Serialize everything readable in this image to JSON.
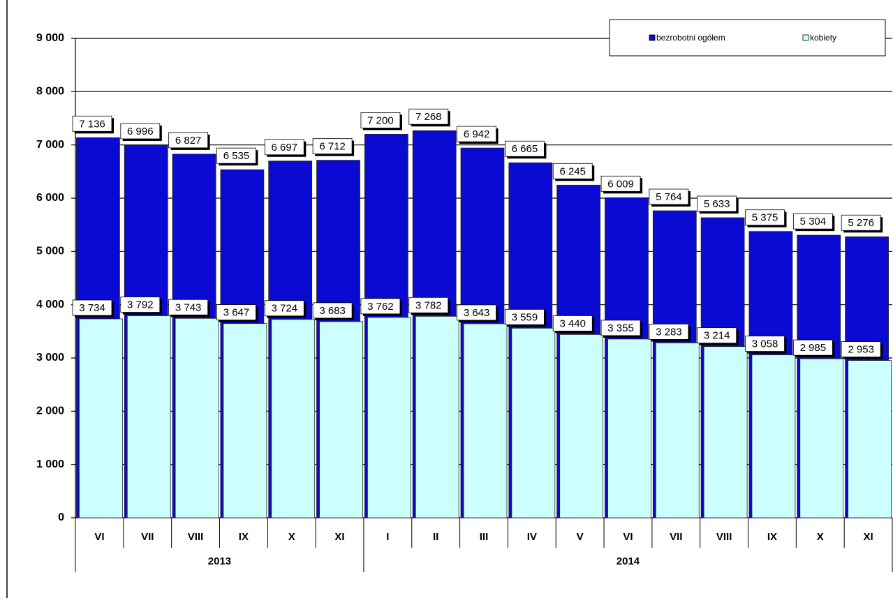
{
  "chart_data": {
    "type": "bar",
    "categories": [
      "VI",
      "VII",
      "VIII",
      "IX",
      "X",
      "XI",
      "I",
      "II",
      "III",
      "IV",
      "V",
      "VI",
      "VII",
      "VIII",
      "IX",
      "X",
      "XI"
    ],
    "x_groups": [
      {
        "label": "2013",
        "count": 6
      },
      {
        "label": "2014",
        "count": 11
      }
    ],
    "series": [
      {
        "name": "bezrobotni ogółem",
        "color": "#0a0ad2",
        "values": [
          7136,
          6996,
          6827,
          6535,
          6697,
          6712,
          7200,
          7268,
          6942,
          6665,
          6245,
          6009,
          5764,
          5633,
          5375,
          5304,
          5276
        ],
        "value_labels": [
          "7 136",
          "6 996",
          "6 827",
          "6 535",
          "6 697",
          "6 712",
          "7 200",
          "7 268",
          "6 942",
          "6 665",
          "6 245",
          "6 009",
          "5 764",
          "5 633",
          "5 375",
          "5 304",
          "5 276"
        ]
      },
      {
        "name": "kobiety",
        "color": "#ccffff",
        "values": [
          3734,
          3792,
          3743,
          3647,
          3724,
          3683,
          3762,
          3782,
          3643,
          3559,
          3440,
          3355,
          3283,
          3214,
          3058,
          2985,
          2953
        ],
        "value_labels": [
          "3 734",
          "3 792",
          "3 743",
          "3 647",
          "3 724",
          "3 683",
          "3 762",
          "3 782",
          "3 643",
          "3 559",
          "3 440",
          "3 355",
          "3 283",
          "3 214",
          "3 058",
          "2 985",
          "2 953"
        ]
      }
    ],
    "ylim": [
      0,
      9000
    ],
    "yticks": [
      0,
      {
        "value": 1000,
        "label": "1 000"
      },
      {
        "value": 2000,
        "label": "2 000"
      },
      {
        "value": 3000,
        "label": "3 000"
      },
      {
        "value": 4000,
        "label": "4 000"
      },
      {
        "value": 5000,
        "label": "5 000"
      },
      {
        "value": 6000,
        "label": "6 000"
      },
      {
        "value": 7000,
        "label": "7 000"
      },
      {
        "value": 8000,
        "label": "8 000"
      },
      {
        "value": 9000,
        "label": "9 000"
      }
    ],
    "grid": true,
    "legend": "top-right"
  }
}
